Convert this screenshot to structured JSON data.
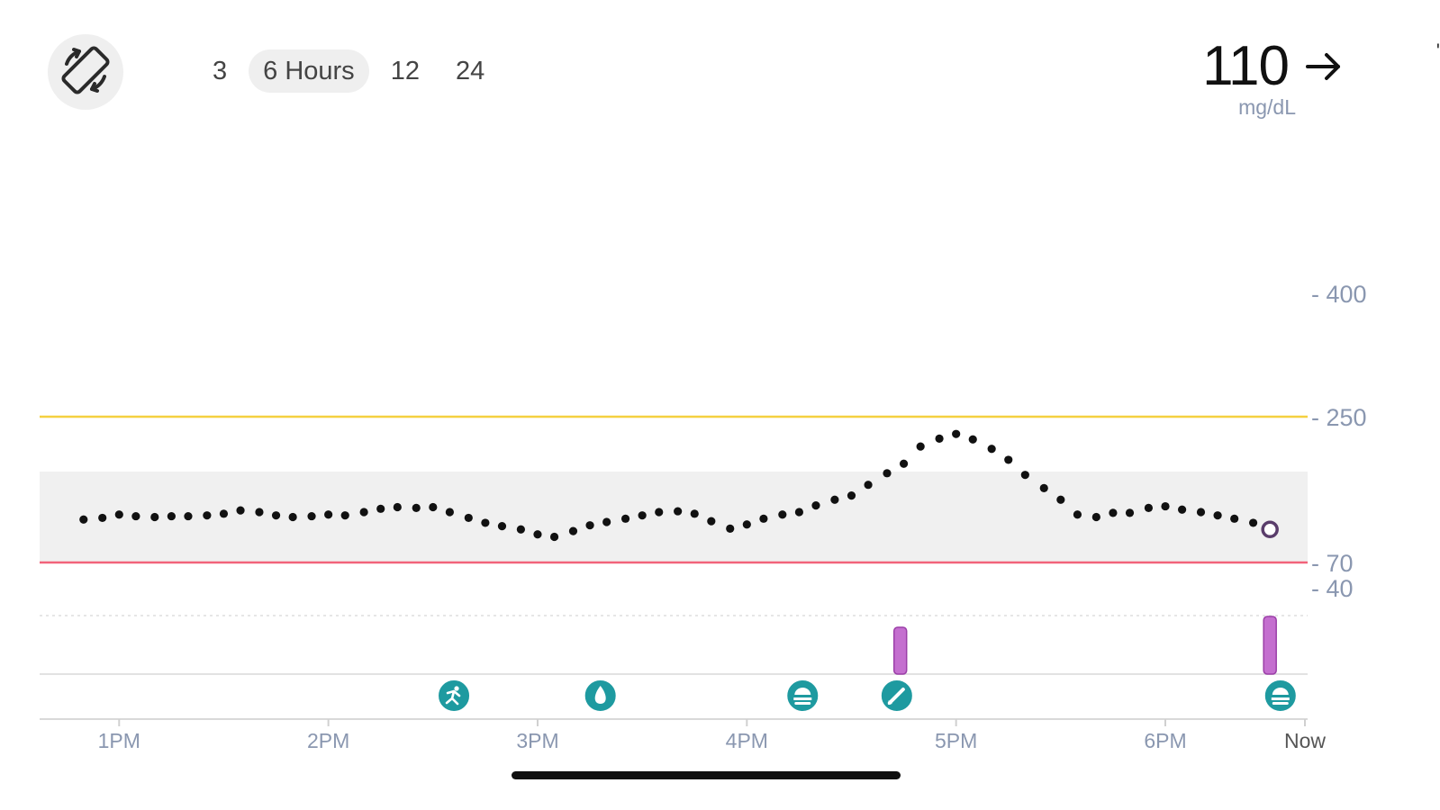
{
  "header": {
    "rotate_icon": "screen-rotation-icon",
    "range_tabs": [
      {
        "label": "3",
        "active": false
      },
      {
        "label": "6 Hours",
        "active": true
      },
      {
        "label": "12",
        "active": false
      },
      {
        "label": "24",
        "active": false
      }
    ],
    "current_reading": {
      "value": "110",
      "unit": "mg/dL",
      "trend_icon": "arrow-right-icon"
    },
    "edge_mark": "'"
  },
  "colors": {
    "high_line": "#f5d040",
    "low_line": "#f2637a",
    "target_band": "#f0f0f0",
    "glucose_dot": "#111111",
    "current_point": "#5a3d6b",
    "event_marker": "#1e9aa0",
    "insulin_bar": "#c46fcf",
    "axis_text": "#8a97b0"
  },
  "chart_data": {
    "type": "scatter",
    "title": "",
    "xlabel": "",
    "ylabel": "mg/dL",
    "x_ticks": [
      "1PM",
      "2PM",
      "3PM",
      "4PM",
      "5PM",
      "6PM",
      "Now"
    ],
    "y_ticks": [
      {
        "value": 400,
        "label": "- 400"
      },
      {
        "value": 250,
        "label": "- 250"
      },
      {
        "value": 70,
        "label": "- 70"
      },
      {
        "value": 40,
        "label": "- 40"
      }
    ],
    "thresholds": {
      "high": 250,
      "low": 70,
      "target_range": [
        70,
        180
      ]
    },
    "ylim": [
      40,
      400
    ],
    "x_range_hours": [
      12.62,
      18.68
    ],
    "series": [
      {
        "x": [
          12.83,
          12.92,
          13.0,
          13.08,
          13.17,
          13.25,
          13.33,
          13.42,
          13.5,
          13.58,
          13.67,
          13.75,
          13.83,
          13.92,
          14.0,
          14.08,
          14.17,
          14.25,
          14.33,
          14.42,
          14.5,
          14.58,
          14.67,
          14.75,
          14.83,
          14.92,
          15.0,
          15.08,
          15.17,
          15.25,
          15.33,
          15.42,
          15.5,
          15.58,
          15.67,
          15.75,
          15.83,
          15.92,
          16.0,
          16.08,
          16.17,
          16.25,
          16.33,
          16.42,
          16.5,
          16.58,
          16.67,
          16.75,
          16.83,
          16.92,
          17.0,
          17.08,
          17.17,
          17.25,
          17.33,
          17.42,
          17.5,
          17.58,
          17.67,
          17.75,
          17.83,
          17.92,
          18.0,
          18.08,
          18.17,
          18.25,
          18.33,
          18.42,
          18.5
        ],
        "y": [
          122,
          124,
          128,
          126,
          125,
          126,
          126,
          127,
          129,
          133,
          131,
          127,
          125,
          126,
          128,
          127,
          131,
          135,
          137,
          136,
          137,
          131,
          124,
          118,
          114,
          110,
          104,
          101,
          108,
          115,
          119,
          123,
          127,
          131,
          132,
          129,
          120,
          111,
          116,
          123,
          128,
          131,
          139,
          146,
          151,
          164,
          178,
          190,
          212,
          222,
          228,
          221,
          209,
          195,
          176,
          160,
          146,
          128,
          125,
          130,
          130,
          136,
          138,
          134,
          131,
          127,
          123,
          118,
          110
        ]
      }
    ],
    "events": [
      {
        "time": "2:36PM",
        "type": "exercise",
        "icon": "running-icon"
      },
      {
        "time": "3:18PM",
        "type": "blood-glucose",
        "icon": "blood-drop-icon"
      },
      {
        "time": "4:16PM",
        "type": "meal",
        "icon": "meal-icon"
      },
      {
        "time": "4:43PM",
        "type": "note",
        "icon": "pencil-icon"
      },
      {
        "time": "6:33PM",
        "type": "meal",
        "icon": "meal-icon"
      }
    ],
    "insulin": [
      {
        "time": "4:44PM",
        "relative_height": 0.75
      },
      {
        "time": "6:30PM",
        "relative_height": 1.0
      }
    ]
  }
}
